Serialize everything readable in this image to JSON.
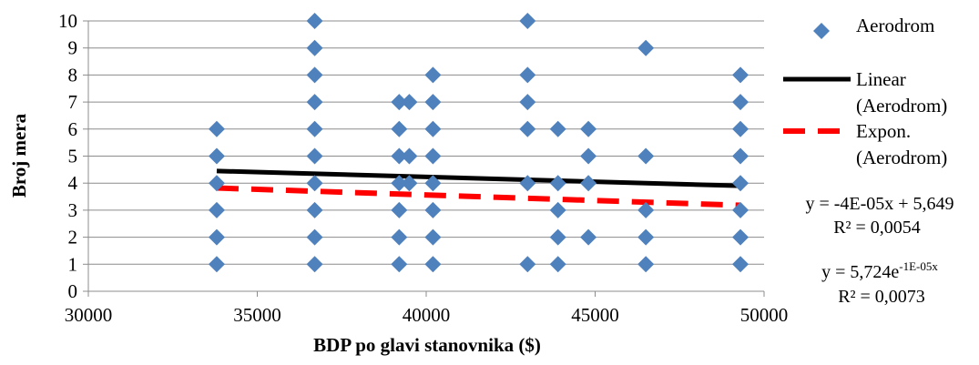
{
  "chart_data": {
    "type": "scatter",
    "xlabel": "BDP po glavi stanovnika ($)",
    "ylabel": "Broj mera",
    "xlim": [
      30000,
      50000
    ],
    "ylim": [
      0,
      10
    ],
    "x_ticks": [
      "30000",
      "35000",
      "40000",
      "45000",
      "50000"
    ],
    "y_ticks": [
      "0",
      "1",
      "2",
      "3",
      "4",
      "5",
      "6",
      "7",
      "8",
      "9",
      "10"
    ],
    "grid": "horizontal",
    "legend_position": "right",
    "series": [
      {
        "name": "Aerodrom",
        "kind": "scatter",
        "marker": "diamond",
        "color": "#4f81bd",
        "points": [
          [
            33800,
            1
          ],
          [
            33800,
            2
          ],
          [
            33800,
            3
          ],
          [
            33800,
            4
          ],
          [
            33800,
            5
          ],
          [
            33800,
            6
          ],
          [
            36700,
            1
          ],
          [
            36700,
            2
          ],
          [
            36700,
            3
          ],
          [
            36700,
            4
          ],
          [
            36700,
            5
          ],
          [
            36700,
            6
          ],
          [
            36700,
            7
          ],
          [
            36700,
            8
          ],
          [
            36700,
            9
          ],
          [
            36700,
            10
          ],
          [
            39200,
            1
          ],
          [
            39200,
            2
          ],
          [
            39200,
            3
          ],
          [
            39200,
            4
          ],
          [
            39200,
            5
          ],
          [
            39200,
            6
          ],
          [
            39200,
            7
          ],
          [
            39500,
            4
          ],
          [
            39500,
            5
          ],
          [
            39500,
            7
          ],
          [
            40200,
            1
          ],
          [
            40200,
            2
          ],
          [
            40200,
            3
          ],
          [
            40200,
            4
          ],
          [
            40200,
            5
          ],
          [
            40200,
            6
          ],
          [
            40200,
            7
          ],
          [
            40200,
            8
          ],
          [
            43000,
            1
          ],
          [
            43000,
            4
          ],
          [
            43000,
            6
          ],
          [
            43000,
            7
          ],
          [
            43000,
            8
          ],
          [
            43000,
            10
          ],
          [
            43900,
            1
          ],
          [
            43900,
            2
          ],
          [
            43900,
            3
          ],
          [
            43900,
            4
          ],
          [
            43900,
            6
          ],
          [
            44800,
            2
          ],
          [
            44800,
            4
          ],
          [
            44800,
            5
          ],
          [
            44800,
            6
          ],
          [
            46500,
            1
          ],
          [
            46500,
            2
          ],
          [
            46500,
            3
          ],
          [
            46500,
            5
          ],
          [
            46500,
            9
          ],
          [
            49300,
            1
          ],
          [
            49300,
            2
          ],
          [
            49300,
            3
          ],
          [
            49300,
            4
          ],
          [
            49300,
            5
          ],
          [
            49300,
            6
          ],
          [
            49300,
            7
          ],
          [
            49300,
            8
          ]
        ]
      },
      {
        "name": "Linear (Aerodrom)",
        "kind": "trend-linear",
        "color": "#000000",
        "x": [
          33800,
          49300
        ],
        "y": [
          4.45,
          3.9
        ]
      },
      {
        "name": "Expon. (Aerodrom)",
        "kind": "trend-exponential",
        "color": "#ff0000",
        "dash": true,
        "x": [
          33800,
          49300
        ],
        "y": [
          3.82,
          3.18
        ]
      }
    ],
    "legend": [
      {
        "label_lines": [
          "Aerodrom"
        ],
        "symbol": "diamond",
        "color": "#4f81bd"
      },
      {
        "label_lines": [
          "Linear",
          "(Aerodrom)"
        ],
        "symbol": "solid-line",
        "color": "#000000"
      },
      {
        "label_lines": [
          "Expon.",
          "(Aerodrom)"
        ],
        "symbol": "dashed-line",
        "color": "#ff0000"
      }
    ],
    "annotations": {
      "linear_equation": "y = -4E-05x + 5,649",
      "linear_r2": "R² = 0,0054",
      "exp_equation_base": "y = 5,724e",
      "exp_equation_exponent": "-1E-05x",
      "exp_r2": "R² = 0,0073"
    }
  }
}
